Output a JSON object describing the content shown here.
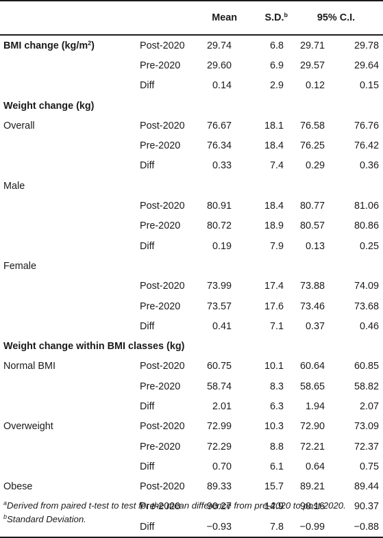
{
  "header": {
    "col_mean": "Mean",
    "col_sd": "S.D.",
    "col_sd_sup": "b",
    "col_ci": "95% C.I."
  },
  "rows": [
    {
      "label": "BMI change (kg/m",
      "label_sup": "2",
      "label_tail": ")",
      "type": "section-inline",
      "period": "Post-2020",
      "mean": "29.74",
      "sd": "6.8",
      "ci_low": "29.71",
      "ci_high": "29.78"
    },
    {
      "label": "",
      "type": "data",
      "period": "Pre-2020",
      "mean": "29.60",
      "sd": "6.9",
      "ci_low": "29.57",
      "ci_high": "29.64"
    },
    {
      "label": "",
      "type": "data",
      "period": "Diff",
      "mean": "0.14",
      "sd": "2.9",
      "ci_low": "0.12",
      "ci_high": "0.15"
    },
    {
      "label": "Weight change (kg)",
      "type": "section"
    },
    {
      "label": "Overall",
      "type": "data",
      "period": "Post-2020",
      "mean": "76.67",
      "sd": "18.1",
      "ci_low": "76.58",
      "ci_high": "76.76"
    },
    {
      "label": "",
      "type": "data",
      "period": "Pre-2020",
      "mean": "76.34",
      "sd": "18.4",
      "ci_low": "76.25",
      "ci_high": "76.42"
    },
    {
      "label": "",
      "type": "data",
      "period": "Diff",
      "mean": "0.33",
      "sd": "7.4",
      "ci_low": "0.29",
      "ci_high": "0.36"
    },
    {
      "label": "Male",
      "type": "group"
    },
    {
      "label": "",
      "type": "data",
      "period": "Post-2020",
      "mean": "80.91",
      "sd": "18.4",
      "ci_low": "80.77",
      "ci_high": "81.06"
    },
    {
      "label": "",
      "type": "data",
      "period": "Pre-2020",
      "mean": "80.72",
      "sd": "18.9",
      "ci_low": "80.57",
      "ci_high": "80.86"
    },
    {
      "label": "",
      "type": "data",
      "period": "Diff",
      "mean": "0.19",
      "sd": "7.9",
      "ci_low": "0.13",
      "ci_high": "0.25"
    },
    {
      "label": "Female",
      "type": "group"
    },
    {
      "label": "",
      "type": "data",
      "period": "Post-2020",
      "mean": "73.99",
      "sd": "17.4",
      "ci_low": "73.88",
      "ci_high": "74.09"
    },
    {
      "label": "",
      "type": "data",
      "period": "Pre-2020",
      "mean": "73.57",
      "sd": "17.6",
      "ci_low": "73.46",
      "ci_high": "73.68"
    },
    {
      "label": "",
      "type": "data",
      "period": "Diff",
      "mean": "0.41",
      "sd": "7.1",
      "ci_low": "0.37",
      "ci_high": "0.46"
    },
    {
      "label": "Weight change within BMI classes (kg)",
      "type": "section"
    },
    {
      "label": "Normal BMI",
      "type": "data",
      "period": "Post-2020",
      "mean": "60.75",
      "sd": "10.1",
      "ci_low": "60.64",
      "ci_high": "60.85"
    },
    {
      "label": "",
      "type": "data",
      "period": "Pre-2020",
      "mean": "58.74",
      "sd": "8.3",
      "ci_low": "58.65",
      "ci_high": "58.82"
    },
    {
      "label": "",
      "type": "data",
      "period": "Diff",
      "mean": "2.01",
      "sd": "6.3",
      "ci_low": "1.94",
      "ci_high": "2.07"
    },
    {
      "label": "Overweight",
      "type": "data",
      "period": "Post-2020",
      "mean": "72.99",
      "sd": "10.3",
      "ci_low": "72.90",
      "ci_high": "73.09"
    },
    {
      "label": "",
      "type": "data",
      "period": "Pre-2020",
      "mean": "72.29",
      "sd": "8.8",
      "ci_low": "72.21",
      "ci_high": "72.37"
    },
    {
      "label": "",
      "type": "data",
      "period": "Diff",
      "mean": "0.70",
      "sd": "6.1",
      "ci_low": "0.64",
      "ci_high": "0.75"
    },
    {
      "label": "Obese",
      "type": "data",
      "period": "Post-2020",
      "mean": "89.33",
      "sd": "15.7",
      "ci_low": "89.21",
      "ci_high": "89.44"
    },
    {
      "label": "",
      "type": "data",
      "period": "Pre-2020",
      "mean": "90.27",
      "sd": "14.9",
      "ci_low": "90.16",
      "ci_high": "90.37"
    },
    {
      "label": "",
      "type": "data",
      "period": "Diff",
      "mean": "−0.93",
      "sd": "7.8",
      "ci_low": "−0.99",
      "ci_high": "−0.88"
    }
  ],
  "footnotes": [
    {
      "marker": "a",
      "text": "Derived from paired t-test to test for the mean difference from pre-2020 to post-2020."
    },
    {
      "marker": "b",
      "text": "Standard Deviation."
    }
  ]
}
